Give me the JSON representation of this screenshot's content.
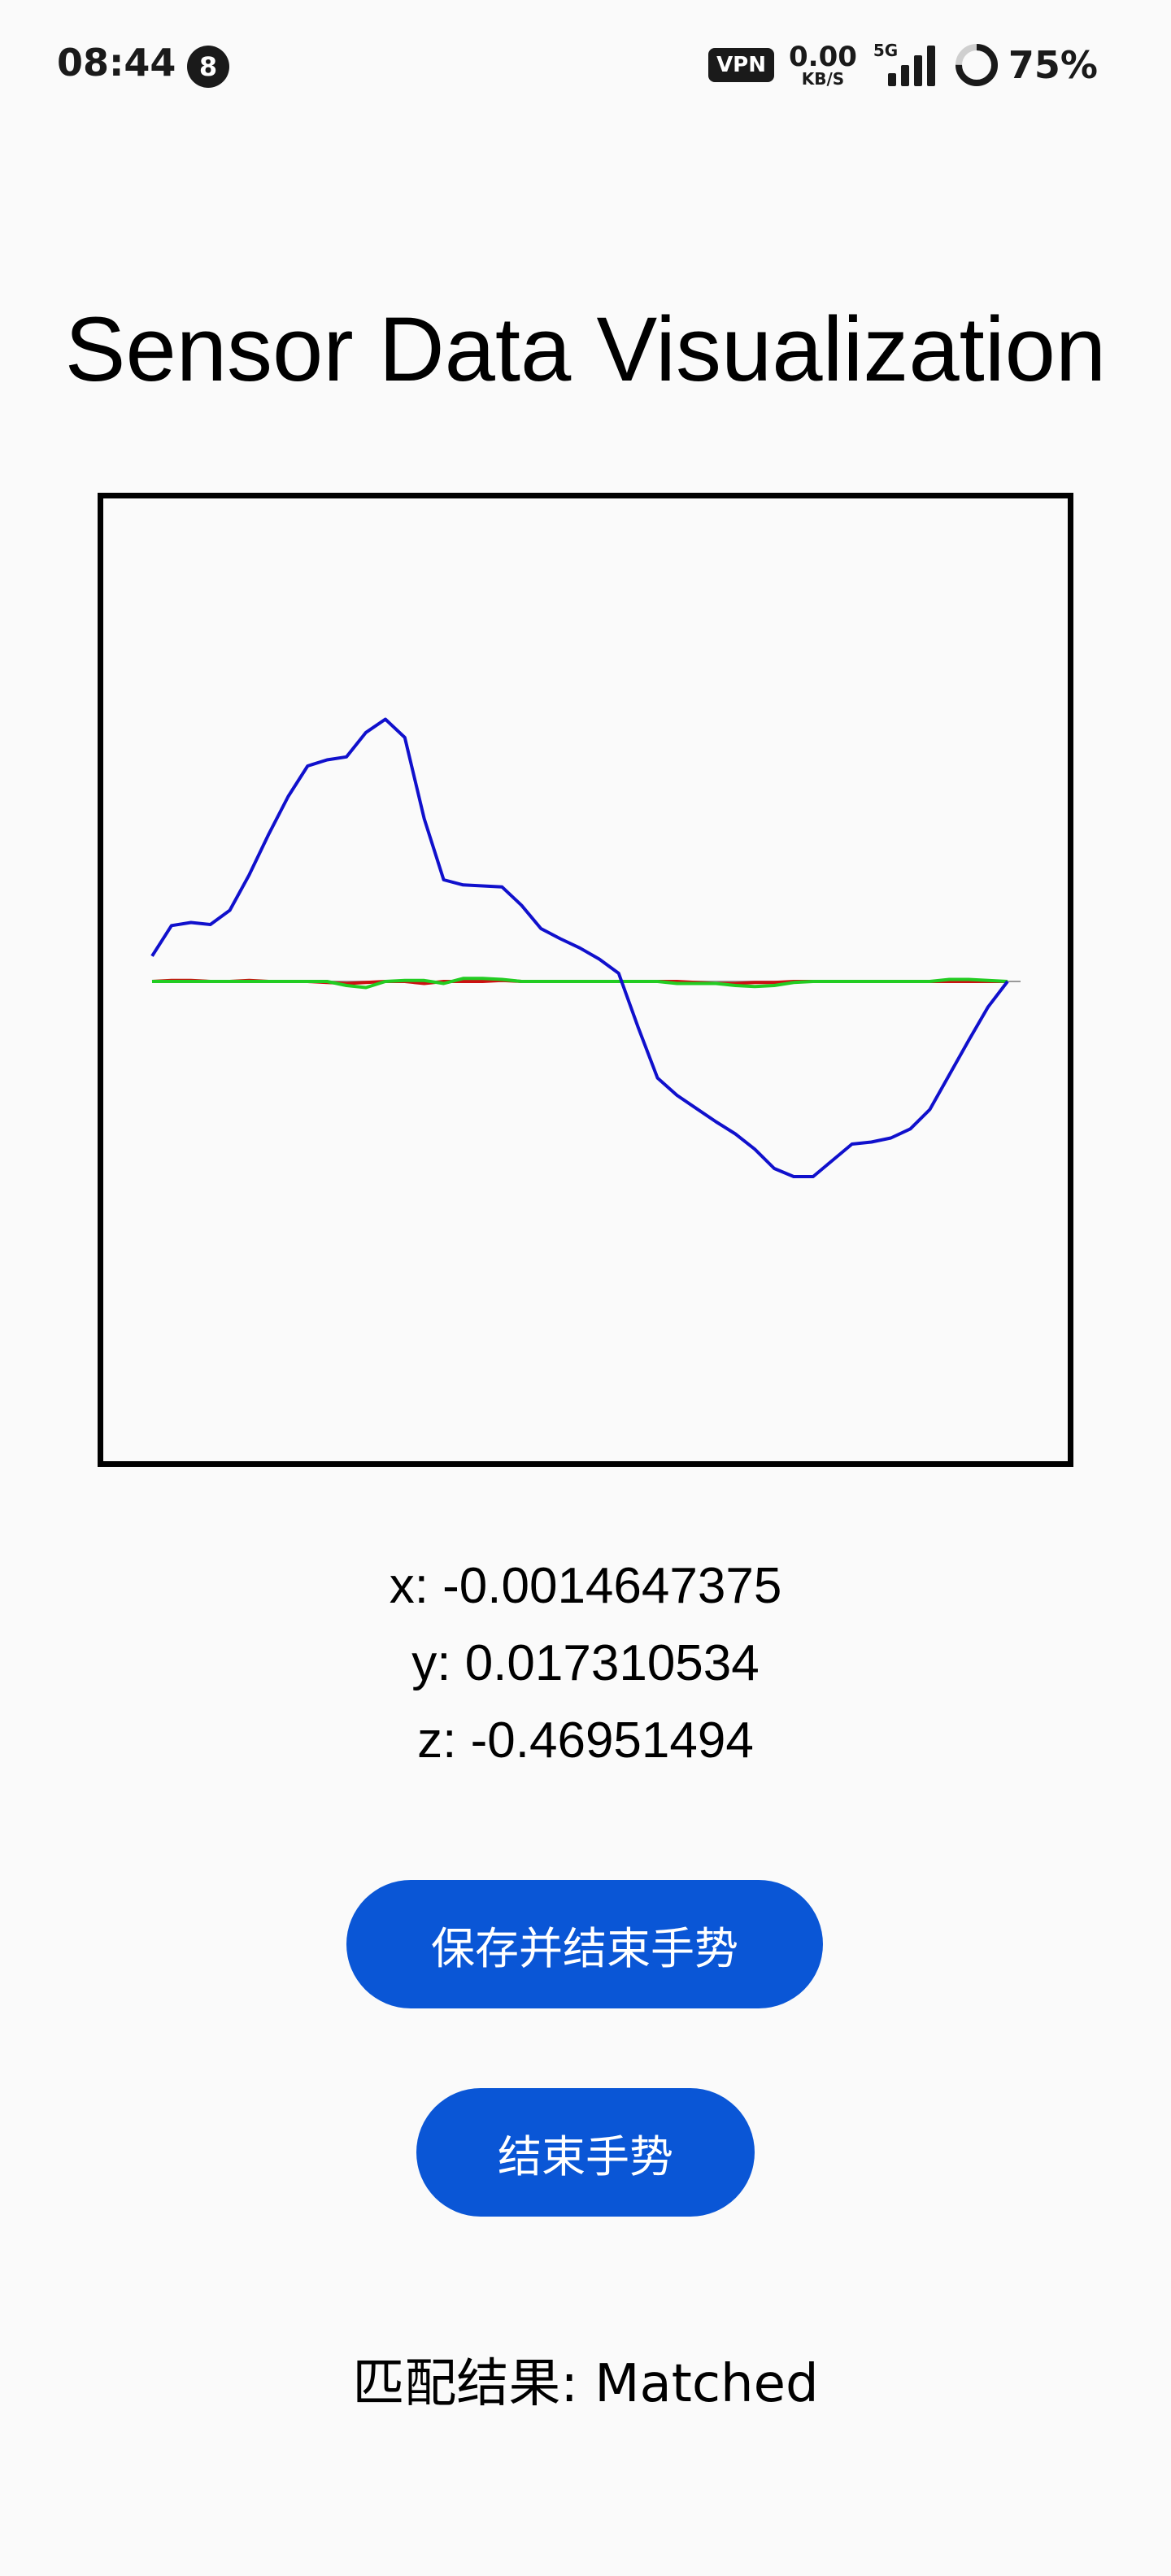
{
  "status_bar": {
    "time": "08:44",
    "notification_count": "8",
    "vpn": "VPN",
    "net_speed": "0.00",
    "net_unit": "KB/S",
    "network": "5G",
    "battery": "75%"
  },
  "title": "Sensor Data Visualization",
  "readout": {
    "x": "x: -0.0014647375",
    "y": "y: 0.017310534",
    "z": "z: -0.46951494"
  },
  "buttons": {
    "save_and_end": "保存并结束手势",
    "end": "结束手势"
  },
  "match_result": "匹配结果: Matched",
  "chart_data": {
    "type": "line",
    "title": "",
    "xlabel": "",
    "ylabel": "",
    "ylim": [
      -5,
      5
    ],
    "grid": false,
    "x": [
      0,
      1,
      2,
      3,
      4,
      5,
      6,
      7,
      8,
      9,
      10,
      11,
      12,
      13,
      14,
      15,
      16,
      17,
      18,
      19,
      20,
      21,
      22,
      23,
      24,
      25,
      26,
      27,
      28,
      29,
      30,
      31,
      32,
      33,
      34,
      35,
      36,
      37,
      38,
      39,
      40,
      41,
      42,
      43,
      44
    ],
    "series": [
      {
        "color": "#1010cc",
        "values": [
          0.25,
          0.55,
          0.58,
          0.56,
          0.7,
          1.05,
          1.45,
          1.82,
          2.12,
          2.18,
          2.21,
          2.45,
          2.58,
          2.4,
          1.6,
          1.0,
          0.95,
          0.94,
          0.93,
          0.75,
          0.52,
          0.42,
          0.33,
          0.22,
          0.08,
          -0.45,
          -0.95,
          -1.12,
          -1.25,
          -1.38,
          -1.5,
          -1.65,
          -1.84,
          -1.92,
          -1.92,
          -1.76,
          -1.6,
          -1.58,
          -1.54,
          -1.45,
          -1.26,
          -0.92,
          -0.58,
          -0.25,
          0
        ]
      },
      {
        "color": "#cc1010",
        "values": [
          0,
          0.01,
          0.01,
          0,
          0,
          0.01,
          0,
          0,
          0,
          -0.01,
          -0.02,
          -0.01,
          0,
          0,
          -0.02,
          0,
          0,
          0,
          0.01,
          0,
          0,
          0,
          0,
          0,
          0,
          0,
          0,
          0,
          -0.01,
          -0.02,
          -0.02,
          -0.01,
          -0.01,
          0,
          0,
          0,
          0,
          0,
          0,
          0,
          0,
          0,
          0,
          0,
          0
        ]
      },
      {
        "color": "#22cc22",
        "values": [
          0,
          0,
          0,
          0,
          0,
          0,
          0,
          0,
          0,
          0,
          -0.04,
          -0.06,
          0,
          0.01,
          0.01,
          -0.02,
          0.03,
          0.03,
          0.02,
          0,
          0,
          0,
          0,
          0,
          0,
          0,
          0,
          -0.02,
          -0.02,
          -0.02,
          -0.04,
          -0.05,
          -0.04,
          -0.01,
          0,
          0,
          0,
          0,
          0,
          0,
          0,
          0.02,
          0.02,
          0.01,
          0
        ]
      }
    ]
  }
}
